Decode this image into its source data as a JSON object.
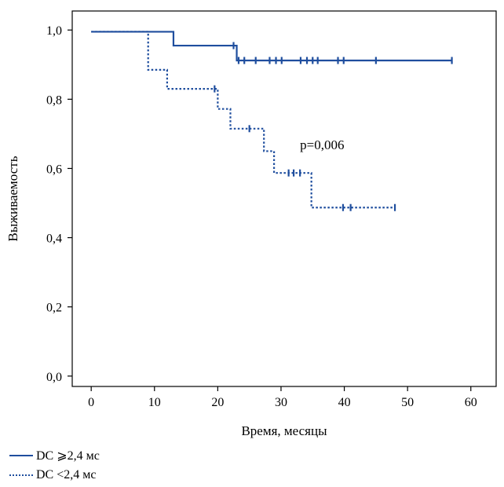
{
  "chart_data": {
    "type": "line",
    "title": "",
    "xlabel": "Время, месяцы",
    "ylabel": "Выживаемость",
    "xlim": [
      -3,
      64
    ],
    "ylim": [
      -0.03,
      1.055
    ],
    "xticks": [
      {
        "value": 0,
        "label": "0"
      },
      {
        "value": 10,
        "label": "10"
      },
      {
        "value": 20,
        "label": "20"
      },
      {
        "value": 30,
        "label": "30"
      },
      {
        "value": 40,
        "label": "40"
      },
      {
        "value": 50,
        "label": "50"
      },
      {
        "value": 60,
        "label": "60"
      }
    ],
    "yticks": [
      {
        "value": 0.0,
        "label": "0,0"
      },
      {
        "value": 0.2,
        "label": "0,2"
      },
      {
        "value": 0.4,
        "label": "0,4"
      },
      {
        "value": 0.6,
        "label": "0,6"
      },
      {
        "value": 0.8,
        "label": "0,8"
      },
      {
        "value": 1.0,
        "label": "1,0"
      }
    ],
    "grid": false,
    "legend_position": "bottom-left",
    "annotation": "p=0,006",
    "series": [
      {
        "name": "DC ⩾2,4 мс",
        "style": "solid",
        "color": "#1f4e9e",
        "steps": [
          [
            0,
            0.995
          ],
          [
            13,
            0.955
          ],
          [
            23,
            0.912
          ],
          [
            57,
            0.912
          ]
        ],
        "censored": [
          [
            22.5,
            0.955
          ],
          [
            23.3,
            0.912
          ],
          [
            24.2,
            0.912
          ],
          [
            26,
            0.912
          ],
          [
            28.2,
            0.912
          ],
          [
            29.2,
            0.912
          ],
          [
            30.1,
            0.912
          ],
          [
            33.1,
            0.912
          ],
          [
            34.1,
            0.912
          ],
          [
            35,
            0.912
          ],
          [
            35.8,
            0.912
          ],
          [
            39,
            0.912
          ],
          [
            39.9,
            0.912
          ],
          [
            45,
            0.912
          ],
          [
            57,
            0.912
          ]
        ]
      },
      {
        "name": "DC <2,4 мс",
        "style": "dotted",
        "color": "#1f4e9e",
        "steps": [
          [
            0,
            0.995
          ],
          [
            9,
            0.885
          ],
          [
            12,
            0.83
          ],
          [
            20,
            0.772
          ],
          [
            22,
            0.715
          ],
          [
            27.3,
            0.65
          ],
          [
            28.9,
            0.587
          ],
          [
            34.8,
            0.487
          ],
          [
            48,
            0.487
          ]
        ],
        "censored": [
          [
            19.5,
            0.83
          ],
          [
            25,
            0.715
          ],
          [
            31.2,
            0.587
          ],
          [
            32,
            0.587
          ],
          [
            33,
            0.587
          ],
          [
            39.8,
            0.487
          ],
          [
            41,
            0.487
          ],
          [
            48,
            0.487
          ]
        ]
      }
    ]
  }
}
